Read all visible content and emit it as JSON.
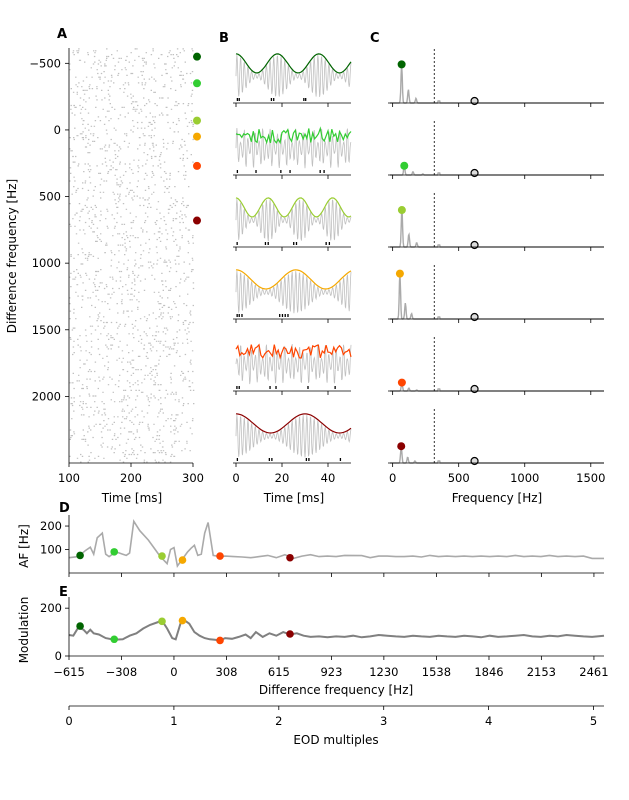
{
  "figure": {
    "panel_letters": [
      "A",
      "B",
      "C",
      "D",
      "E"
    ],
    "colors": {
      "dark_green": "#006400",
      "lime_green": "#32cd32",
      "yellow_green": "#9acd32",
      "orange": "#f5a800",
      "orange_red": "#ff4500",
      "dark_red": "#8b0000",
      "gray": "#aaaaaa",
      "dark_gray": "#808080",
      "spikes": "#c0c0c0"
    }
  },
  "chart_data": [
    {
      "id": "A",
      "type": "scatter",
      "description_note": "raster of spike times per difference frequency",
      "xlabel": "Time [ms]",
      "ylabel": "Difference frequency [Hz]",
      "xlim": [
        100,
        300
      ],
      "ylim": [
        2500,
        -615
      ],
      "x_ticks": [
        100,
        200,
        300
      ],
      "y_ticks": [
        -500,
        0,
        500,
        1000,
        1500,
        2000
      ],
      "y_tick_labels": [
        "−500",
        "0",
        "500",
        "1000",
        "1500",
        "2000"
      ],
      "markers": [
        {
          "df": -550,
          "color": "#006400"
        },
        {
          "df": -350,
          "color": "#32cd32"
        },
        {
          "df": -70,
          "color": "#9acd32"
        },
        {
          "df": 50,
          "color": "#f5a800"
        },
        {
          "df": 270,
          "color": "#ff4500"
        },
        {
          "df": 680,
          "color": "#8b0000"
        }
      ]
    },
    {
      "id": "B",
      "type": "line",
      "xlabel": "Time [ms]",
      "xlim": [
        0,
        50
      ],
      "x_ticks": [
        0,
        20,
        40
      ],
      "rows": [
        {
          "color": "#006400",
          "am_style": "smooth",
          "spikes": [
            0.6,
            1.4,
            15.4,
            16.4,
            29.5,
            30.3
          ]
        },
        {
          "color": "#32cd32",
          "am_style": "jagged",
          "spikes": [
            0.6,
            8.7,
            19.5,
            23.5,
            36.6,
            38.3
          ]
        },
        {
          "color": "#9acd32",
          "am_style": "smooth",
          "spikes": [
            0.5,
            12.8,
            14.0,
            25.1,
            26.3,
            39.2,
            40.6
          ]
        },
        {
          "color": "#f5a800",
          "am_style": "smooth",
          "spikes": [
            0.5,
            1.4,
            2.6,
            19.0,
            20.2,
            21.4,
            22.6
          ]
        },
        {
          "color": "#ff4500",
          "am_style": "jagged",
          "spikes": [
            0.4,
            1.4,
            14.8,
            17.4,
            31.3,
            43.1
          ]
        },
        {
          "color": "#8b0000",
          "am_style": "smooth",
          "spikes": [
            0.6,
            14.5,
            15.6,
            30.6,
            31.7,
            45.4
          ]
        }
      ]
    },
    {
      "id": "C",
      "type": "line",
      "xlabel": "Frequency [Hz]",
      "xlim": [
        -20,
        1600
      ],
      "x_ticks": [
        0,
        500,
        1000,
        1500
      ],
      "dashed_line_x": 315,
      "open_marker_x": 620,
      "rows": [
        {
          "color": "#006400",
          "peak_f": 68,
          "peak_amp": 0.92
        },
        {
          "color": "#32cd32",
          "peak_f": 88,
          "peak_amp": 0.22
        },
        {
          "color": "#9acd32",
          "peak_f": 70,
          "peak_amp": 0.88
        },
        {
          "color": "#f5a800",
          "peak_f": 55,
          "peak_amp": 1.08
        },
        {
          "color": "#ff4500",
          "peak_f": 70,
          "peak_amp": 0.2
        },
        {
          "color": "#8b0000",
          "peak_f": 65,
          "peak_amp": 0.4
        }
      ]
    },
    {
      "id": "D",
      "type": "line",
      "ylabel": "AF [Hz]",
      "xlim": [
        -615,
        2520
      ],
      "ylim": [
        0,
        230
      ],
      "y_ticks": [
        100,
        200
      ],
      "series": [
        {
          "x": [
            -615,
            -560,
            -520,
            -490,
            -470,
            -450,
            -420,
            -400,
            -380,
            -360,
            -340,
            -320,
            -300,
            -280,
            -260,
            -235,
            -200,
            -150,
            -110,
            -80,
            -60,
            -40,
            -20,
            0,
            20,
            40,
            60,
            80,
            100,
            120,
            140,
            160,
            180,
            200,
            230,
            270,
            300,
            350,
            400,
            450,
            500,
            550,
            600,
            650,
            700,
            750,
            800,
            850,
            900,
            950,
            1000,
            1100,
            1150,
            1200,
            1250,
            1300,
            1350,
            1400,
            1450,
            1500,
            1550,
            1600,
            1650,
            1700,
            1750,
            1800,
            1850,
            1900,
            1950,
            2000,
            2050,
            2100,
            2150,
            2200,
            2250,
            2300,
            2350,
            2400,
            2450,
            2520
          ],
          "y": [
            65,
            70,
            95,
            110,
            80,
            150,
            170,
            80,
            70,
            80,
            90,
            85,
            80,
            75,
            85,
            220,
            180,
            140,
            100,
            70,
            55,
            40,
            100,
            108,
            30,
            50,
            70,
            90,
            105,
            118,
            75,
            80,
            170,
            215,
            75,
            70,
            72,
            70,
            68,
            65,
            70,
            75,
            65,
            78,
            62,
            72,
            78,
            70,
            72,
            70,
            75,
            74,
            65,
            72,
            72,
            70,
            70,
            72,
            68,
            75,
            70,
            72,
            70,
            72,
            70,
            72,
            70,
            72,
            70,
            75,
            70,
            72,
            70,
            75,
            70,
            72,
            70,
            72,
            62,
            62
          ]
        }
      ],
      "points": [
        {
          "x": -550,
          "y": 75,
          "color": "#006400"
        },
        {
          "x": -350,
          "y": 90,
          "color": "#32cd32"
        },
        {
          "x": -70,
          "y": 72,
          "color": "#9acd32"
        },
        {
          "x": 50,
          "y": 55,
          "color": "#f5a800"
        },
        {
          "x": 270,
          "y": 72,
          "color": "#ff4500"
        },
        {
          "x": 680,
          "y": 65,
          "color": "#8b0000"
        }
      ]
    },
    {
      "id": "E",
      "type": "line",
      "ylabel": "Modulation",
      "xlabel": "Difference frequency [Hz]",
      "xlim": [
        -615,
        2520
      ],
      "ylim": [
        0,
        230
      ],
      "y_ticks": [
        0,
        200
      ],
      "x_ticks": [
        -615,
        -308,
        0,
        308,
        615,
        923,
        1230,
        1538,
        1846,
        2153,
        2461
      ],
      "x_tick_labels": [
        "−615",
        "−308",
        "0",
        "308",
        "615",
        "923",
        "1230",
        "1538",
        "1846",
        "2153",
        "2461"
      ],
      "series": [
        {
          "x": [
            -615,
            -590,
            -560,
            -530,
            -510,
            -490,
            -470,
            -440,
            -400,
            -350,
            -300,
            -260,
            -220,
            -180,
            -140,
            -100,
            -70,
            -40,
            -10,
            10,
            40,
            60,
            90,
            120,
            150,
            180,
            210,
            240,
            270,
            300,
            340,
            380,
            420,
            450,
            480,
            520,
            560,
            600,
            640,
            680,
            720,
            760,
            800,
            850,
            900,
            950,
            1000,
            1050,
            1100,
            1150,
            1200,
            1250,
            1300,
            1350,
            1400,
            1450,
            1500,
            1550,
            1600,
            1650,
            1700,
            1750,
            1800,
            1850,
            1900,
            1950,
            2000,
            2050,
            2100,
            2150,
            2200,
            2250,
            2300,
            2350,
            2400,
            2450,
            2520
          ],
          "y": [
            88,
            85,
            120,
            110,
            95,
            110,
            95,
            90,
            75,
            68,
            70,
            85,
            95,
            115,
            130,
            140,
            148,
            115,
            75,
            70,
            140,
            150,
            135,
            100,
            85,
            75,
            70,
            68,
            65,
            75,
            72,
            80,
            90,
            75,
            100,
            80,
            95,
            85,
            100,
            90,
            95,
            85,
            80,
            82,
            78,
            82,
            80,
            85,
            78,
            82,
            88,
            85,
            82,
            80,
            85,
            82,
            80,
            85,
            82,
            80,
            85,
            82,
            78,
            85,
            80,
            82,
            85,
            88,
            82,
            80,
            85,
            82,
            88,
            85,
            82,
            80,
            85
          ]
        }
      ],
      "points": [
        {
          "x": -550,
          "y": 125,
          "color": "#006400"
        },
        {
          "x": -350,
          "y": 70,
          "color": "#32cd32"
        },
        {
          "x": -70,
          "y": 145,
          "color": "#9acd32"
        },
        {
          "x": 50,
          "y": 148,
          "color": "#f5a800"
        },
        {
          "x": 270,
          "y": 65,
          "color": "#ff4500"
        },
        {
          "x": 680,
          "y": 92,
          "color": "#8b0000"
        }
      ]
    },
    {
      "id": "E-secondary-axis",
      "type": "line",
      "xlabel": "EOD multiples",
      "xlim": [
        0,
        5.1
      ],
      "x_ticks": [
        0,
        1,
        2,
        3,
        4,
        5
      ]
    }
  ]
}
